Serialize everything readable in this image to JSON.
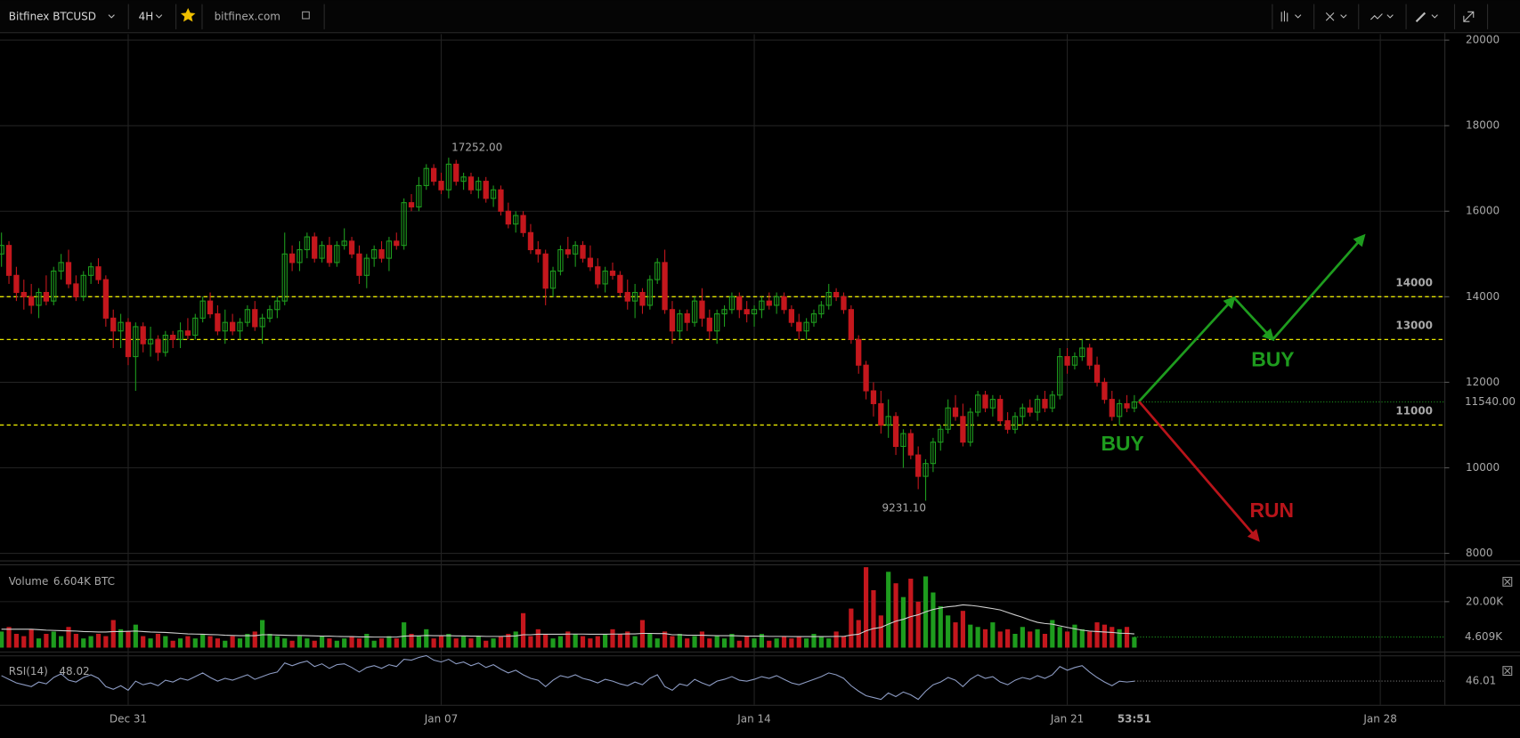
{
  "chart_data": {
    "type": "candlestick",
    "title": "Bitfinex BTCUSD",
    "interval": "4H",
    "source": "bitfinex.com",
    "xlim": [
      -0.2,
      193.6
    ],
    "xticks": [
      {
        "value": 17,
        "label": "Dec 31"
      },
      {
        "value": 59,
        "label": "Jan 07"
      },
      {
        "value": 101,
        "label": "Jan 14"
      },
      {
        "value": 143,
        "label": "Jan 21"
      },
      {
        "value": 185,
        "label": "Jan 28"
      }
    ],
    "ylim": [
      7880,
      20140
    ],
    "yticks": [
      8000,
      10000,
      12000,
      14000,
      16000,
      18000,
      20000
    ],
    "grid": true,
    "up_color": "#1e9c1e",
    "down_color": "#c4171d",
    "countdown": "53:51",
    "high_label": "17252.00",
    "low_label": "9231.10",
    "last_price_label": "11540.00",
    "levels": {
      "values": [
        14000,
        13000,
        11000
      ],
      "color": "#e8e800"
    },
    "annotations": [
      "BUY",
      "BUY",
      "RUN"
    ],
    "candles": [
      [
        15000,
        15500,
        14700,
        15200
      ],
      [
        15200,
        15300,
        14300,
        14500
      ],
      [
        14500,
        14700,
        13900,
        14100
      ],
      [
        14100,
        14400,
        13700,
        14000
      ],
      [
        14000,
        14300,
        13600,
        13800
      ],
      [
        13800,
        14200,
        13500,
        14100
      ],
      [
        14100,
        14500,
        13800,
        13900
      ],
      [
        13900,
        14700,
        13800,
        14600
      ],
      [
        14600,
        15000,
        14400,
        14800
      ],
      [
        14800,
        15100,
        14200,
        14300
      ],
      [
        14300,
        14500,
        13900,
        14000
      ],
      [
        14000,
        14600,
        13900,
        14500
      ],
      [
        14500,
        14800,
        14300,
        14700
      ],
      [
        14700,
        14900,
        14300,
        14400
      ],
      [
        14400,
        14500,
        13300,
        13500
      ],
      [
        13500,
        13700,
        12800,
        13200
      ],
      [
        13200,
        13600,
        12800,
        13400
      ],
      [
        13400,
        13500,
        12400,
        12600
      ],
      [
        12600,
        13400,
        11800,
        13300
      ],
      [
        13300,
        13400,
        12700,
        12900
      ],
      [
        12900,
        13300,
        12600,
        13000
      ],
      [
        13000,
        13100,
        12500,
        12700
      ],
      [
        12700,
        13200,
        12600,
        13100
      ],
      [
        13100,
        13200,
        12800,
        13000
      ],
      [
        13000,
        13400,
        12800,
        13200
      ],
      [
        13200,
        13500,
        13000,
        13100
      ],
      [
        13100,
        13600,
        13000,
        13500
      ],
      [
        13500,
        14000,
        13400,
        13900
      ],
      [
        13900,
        14100,
        13500,
        13600
      ],
      [
        13600,
        13800,
        13100,
        13200
      ],
      [
        13200,
        13700,
        12900,
        13400
      ],
      [
        13400,
        13600,
        13100,
        13200
      ],
      [
        13200,
        13500,
        13000,
        13400
      ],
      [
        13400,
        13800,
        13300,
        13700
      ],
      [
        13700,
        13900,
        13200,
        13300
      ],
      [
        13300,
        13600,
        12900,
        13500
      ],
      [
        13500,
        13800,
        13400,
        13700
      ],
      [
        13700,
        14000,
        13500,
        13900
      ],
      [
        13900,
        15500,
        13800,
        15000
      ],
      [
        15000,
        15200,
        14600,
        14800
      ],
      [
        14800,
        15300,
        14600,
        15100
      ],
      [
        15100,
        15500,
        14900,
        15400
      ],
      [
        15400,
        15500,
        14800,
        14900
      ],
      [
        14900,
        15300,
        14800,
        15200
      ],
      [
        15200,
        15400,
        14700,
        14800
      ],
      [
        14800,
        15300,
        14700,
        15200
      ],
      [
        15200,
        15600,
        15100,
        15300
      ],
      [
        15300,
        15400,
        14900,
        15000
      ],
      [
        15000,
        15200,
        14300,
        14500
      ],
      [
        14500,
        15000,
        14200,
        14900
      ],
      [
        14900,
        15200,
        14700,
        15100
      ],
      [
        15100,
        15300,
        14800,
        14900
      ],
      [
        14900,
        15400,
        14600,
        15300
      ],
      [
        15300,
        15500,
        15100,
        15200
      ],
      [
        15200,
        16300,
        15100,
        16200
      ],
      [
        16200,
        16400,
        16000,
        16100
      ],
      [
        16100,
        16800,
        16000,
        16600
      ],
      [
        16600,
        17100,
        16500,
        17000
      ],
      [
        17000,
        17100,
        16600,
        16700
      ],
      [
        16700,
        16900,
        16400,
        16500
      ],
      [
        16500,
        17252,
        16300,
        17100
      ],
      [
        17100,
        17200,
        16600,
        16700
      ],
      [
        16700,
        16900,
        16500,
        16800
      ],
      [
        16800,
        16900,
        16400,
        16500
      ],
      [
        16500,
        16800,
        16300,
        16700
      ],
      [
        16700,
        16800,
        16200,
        16300
      ],
      [
        16300,
        16600,
        16100,
        16500
      ],
      [
        16500,
        16600,
        15900,
        16000
      ],
      [
        16000,
        16200,
        15600,
        15700
      ],
      [
        15700,
        16000,
        15500,
        15900
      ],
      [
        15900,
        16000,
        15400,
        15500
      ],
      [
        15500,
        15700,
        15000,
        15100
      ],
      [
        15100,
        15300,
        14800,
        15000
      ],
      [
        15000,
        15100,
        13800,
        14200
      ],
      [
        14200,
        14700,
        14000,
        14600
      ],
      [
        14600,
        15200,
        14500,
        15100
      ],
      [
        15100,
        15400,
        14900,
        15000
      ],
      [
        15000,
        15300,
        14700,
        15200
      ],
      [
        15200,
        15300,
        14800,
        14900
      ],
      [
        14900,
        15200,
        14600,
        14700
      ],
      [
        14700,
        14900,
        14200,
        14300
      ],
      [
        14300,
        14700,
        14100,
        14600
      ],
      [
        14600,
        14800,
        14400,
        14500
      ],
      [
        14500,
        14600,
        14000,
        14100
      ],
      [
        14100,
        14400,
        13700,
        13900
      ],
      [
        13900,
        14300,
        13500,
        14100
      ],
      [
        14100,
        14200,
        13600,
        13800
      ],
      [
        13800,
        14500,
        13700,
        14400
      ],
      [
        14400,
        14900,
        14300,
        14800
      ],
      [
        14800,
        15100,
        13600,
        13700
      ],
      [
        13700,
        13900,
        12900,
        13200
      ],
      [
        13200,
        13700,
        13000,
        13600
      ],
      [
        13600,
        13700,
        13200,
        13400
      ],
      [
        13400,
        14000,
        13300,
        13900
      ],
      [
        13900,
        14200,
        13300,
        13500
      ],
      [
        13500,
        13700,
        13000,
        13200
      ],
      [
        13200,
        13700,
        12900,
        13600
      ],
      [
        13600,
        13800,
        13300,
        13700
      ],
      [
        13700,
        14100,
        13600,
        14000
      ],
      [
        14000,
        14100,
        13500,
        13700
      ],
      [
        13700,
        13900,
        13400,
        13600
      ],
      [
        13600,
        13800,
        13300,
        13700
      ],
      [
        13700,
        14000,
        13500,
        13900
      ],
      [
        13900,
        14100,
        13700,
        13800
      ],
      [
        13800,
        14100,
        13600,
        14000
      ],
      [
        14000,
        14100,
        13600,
        13700
      ],
      [
        13700,
        13800,
        13300,
        13400
      ],
      [
        13400,
        13600,
        13000,
        13200
      ],
      [
        13200,
        13500,
        13000,
        13400
      ],
      [
        13400,
        13700,
        13300,
        13600
      ],
      [
        13600,
        13900,
        13500,
        13800
      ],
      [
        13800,
        14300,
        13700,
        14100
      ],
      [
        14100,
        14200,
        13900,
        14000
      ],
      [
        14000,
        14100,
        13600,
        13700
      ],
      [
        13700,
        13800,
        12900,
        13000
      ],
      [
        13000,
        13100,
        12200,
        12400
      ],
      [
        12400,
        12500,
        11600,
        11800
      ],
      [
        11800,
        12000,
        11200,
        11500
      ],
      [
        11500,
        11800,
        10800,
        11000
      ],
      [
        11000,
        11600,
        10700,
        11200
      ],
      [
        11200,
        11300,
        10300,
        10500
      ],
      [
        10500,
        10900,
        10000,
        10800
      ],
      [
        10800,
        10900,
        10200,
        10300
      ],
      [
        10300,
        10500,
        9500,
        9800
      ],
      [
        9800,
        10200,
        9231.1,
        10100
      ],
      [
        10100,
        10700,
        9900,
        10600
      ],
      [
        10600,
        11000,
        10400,
        10900
      ],
      [
        10900,
        11600,
        10800,
        11400
      ],
      [
        11400,
        11700,
        11100,
        11200
      ],
      [
        11200,
        11500,
        10500,
        10600
      ],
      [
        10600,
        11400,
        10500,
        11300
      ],
      [
        11300,
        11800,
        11200,
        11700
      ],
      [
        11700,
        11800,
        11300,
        11400
      ],
      [
        11400,
        11700,
        11200,
        11600
      ],
      [
        11600,
        11700,
        11000,
        11100
      ],
      [
        11100,
        11300,
        10800,
        10900
      ],
      [
        10900,
        11300,
        10800,
        11200
      ],
      [
        11200,
        11500,
        11000,
        11400
      ],
      [
        11400,
        11600,
        11200,
        11300
      ],
      [
        11300,
        11700,
        11100,
        11600
      ],
      [
        11600,
        11800,
        11300,
        11400
      ],
      [
        11400,
        11800,
        11300,
        11700
      ],
      [
        11700,
        12800,
        11600,
        12600
      ],
      [
        12600,
        12800,
        12200,
        12400
      ],
      [
        12400,
        12700,
        12300,
        12600
      ],
      [
        12600,
        13000,
        12500,
        12800
      ],
      [
        12800,
        12900,
        12300,
        12400
      ],
      [
        12400,
        12600,
        11900,
        12000
      ],
      [
        12000,
        12100,
        11500,
        11600
      ],
      [
        11600,
        11800,
        11100,
        11200
      ],
      [
        11200,
        11600,
        11000,
        11500
      ],
      [
        11500,
        11700,
        11300,
        11400
      ],
      [
        11400,
        11700,
        11300,
        11540
      ]
    ],
    "volume": {
      "title": "Volume",
      "readout": "6.604K BTC",
      "ylim": [
        0,
        35
      ],
      "yticks": [
        {
          "value": 20,
          "label": "20.00K"
        }
      ],
      "last_label": "4.609K",
      "ma_color": "#d0d0d0",
      "values": [
        7,
        9,
        6,
        5,
        8,
        4,
        6,
        7,
        5,
        9,
        6,
        4,
        5,
        6,
        5,
        12,
        8,
        7,
        10,
        5,
        4,
        6,
        5,
        3,
        4,
        5,
        4,
        6,
        5,
        4,
        3,
        5,
        4,
        6,
        7,
        12,
        6,
        5,
        4,
        3,
        5,
        4,
        3,
        5,
        4,
        3,
        4,
        5,
        4,
        6,
        3,
        4,
        5,
        4,
        11,
        6,
        5,
        8,
        4,
        5,
        6,
        4,
        5,
        4,
        5,
        3,
        4,
        5,
        6,
        7,
        15,
        5,
        8,
        6,
        4,
        5,
        7,
        6,
        5,
        4,
        5,
        6,
        8,
        6,
        7,
        5,
        12,
        6,
        4,
        7,
        5,
        6,
        4,
        5,
        7,
        4,
        5,
        4,
        6,
        3,
        5,
        4,
        6,
        3,
        4,
        5,
        4,
        5,
        4,
        6,
        5,
        4,
        7,
        5,
        17,
        12,
        35,
        25,
        14,
        33,
        28,
        22,
        30,
        20,
        31,
        24,
        18,
        14,
        11,
        16,
        10,
        9,
        8,
        11,
        7,
        8,
        6,
        9,
        7,
        8,
        6,
        12,
        9,
        7,
        10,
        8,
        7,
        11,
        10,
        9,
        8,
        9,
        4.609
      ],
      "ma": [
        8,
        8,
        8,
        8,
        8,
        7.8,
        7.6,
        7.5,
        7.4,
        7.3,
        7.2,
        7,
        6.9,
        6.8,
        6.8,
        7,
        7,
        7.1,
        7.2,
        7,
        6.8,
        6.7,
        6.6,
        6.4,
        6.2,
        6,
        5.9,
        5.8,
        5.7,
        5.6,
        5.4,
        5.3,
        5.2,
        5.2,
        5.2,
        5.6,
        5.6,
        5.5,
        5.4,
        5.3,
        5.3,
        5.2,
        5.1,
        5,
        5,
        4.9,
        4.8,
        4.8,
        4.7,
        4.7,
        4.6,
        4.6,
        4.6,
        4.6,
        5,
        5.1,
        5.1,
        5.3,
        5.2,
        5.2,
        5.2,
        5.1,
        5.1,
        5,
        5,
        4.9,
        4.9,
        4.9,
        5,
        5.1,
        5.6,
        5.6,
        5.8,
        5.8,
        5.8,
        5.8,
        5.9,
        5.9,
        5.9,
        5.8,
        5.8,
        5.8,
        5.9,
        5.9,
        6,
        6,
        6.2,
        6.2,
        6.1,
        6.1,
        5.6,
        5.6,
        5.4,
        5.4,
        5.4,
        5.3,
        5.2,
        5.2,
        5.2,
        5.1,
        5,
        5,
        5,
        4.9,
        4.9,
        4.9,
        4.8,
        4.8,
        4.8,
        4.8,
        4.8,
        4.8,
        4.9,
        4.9,
        5.5,
        5.8,
        7.3,
        8.3,
        8.8,
        10.2,
        11.5,
        12.3,
        13.5,
        14.3,
        15.6,
        16.6,
        17.3,
        17.8,
        18.1,
        18.6,
        18.4,
        18,
        17.5,
        17,
        16.4,
        15.3,
        14.2,
        13.2,
        12,
        11,
        10.5,
        10.2,
        9.5,
        8.8,
        8.2,
        7.6,
        7.2,
        7,
        6.8,
        6.6,
        6.3,
        6.2,
        6
      ]
    },
    "rsi": {
      "title": "RSI(14)",
      "readout": 48.02,
      "ylim": [
        20,
        70
      ],
      "color": "#8d9cc4",
      "values": [
        52,
        48,
        44,
        42,
        40,
        45,
        43,
        50,
        54,
        47,
        45,
        50,
        53,
        49,
        40,
        37,
        41,
        36,
        46,
        42,
        44,
        41,
        47,
        45,
        49,
        47,
        51,
        55,
        50,
        46,
        49,
        47,
        50,
        53,
        48,
        51,
        54,
        56,
        66,
        63,
        66,
        68,
        62,
        65,
        60,
        64,
        65,
        61,
        56,
        61,
        63,
        60,
        64,
        62,
        70,
        69,
        72,
        74,
        69,
        67,
        70,
        65,
        67,
        63,
        66,
        61,
        64,
        59,
        55,
        58,
        53,
        49,
        47,
        40,
        47,
        52,
        50,
        53,
        49,
        47,
        44,
        48,
        46,
        43,
        41,
        45,
        42,
        49,
        53,
        40,
        36,
        43,
        41,
        48,
        44,
        41,
        46,
        48,
        51,
        47,
        46,
        48,
        51,
        49,
        52,
        48,
        44,
        42,
        45,
        48,
        51,
        55,
        53,
        49,
        41,
        35,
        30,
        28,
        26,
        33,
        29,
        34,
        31,
        26,
        35,
        42,
        45,
        50,
        47,
        40,
        48,
        53,
        49,
        51,
        45,
        42,
        47,
        50,
        48,
        52,
        49,
        53,
        62,
        58,
        61,
        63,
        56,
        50,
        45,
        41,
        46,
        45,
        46.01
      ]
    }
  }
}
